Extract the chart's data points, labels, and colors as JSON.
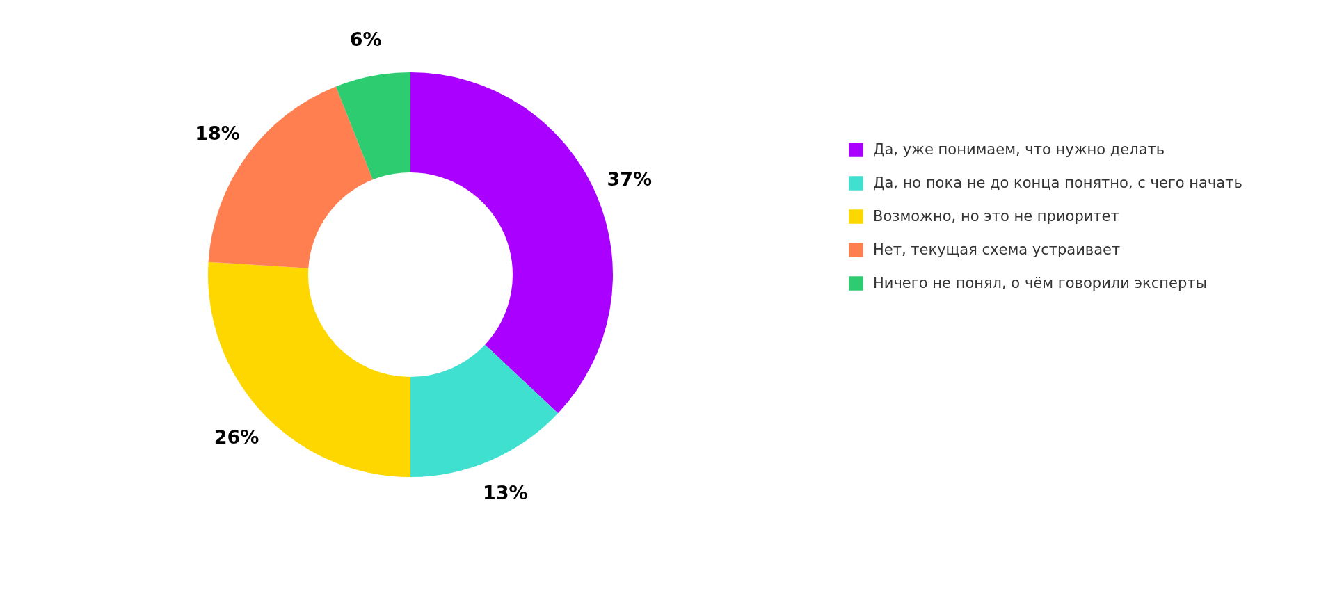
{
  "chart_data": {
    "type": "donut",
    "categories": [
      "Да, уже понимаем, что нужно делать",
      "Да, но пока не до конца понятно, с чего начать",
      "Возможно, но это не приоритет",
      "Нет, текущая схема устраивает",
      "Ничего не понял, о чём говорили эксперты"
    ],
    "values": [
      37,
      13,
      26,
      18,
      6
    ],
    "value_labels": [
      "37%",
      "13%",
      "26%",
      "18%",
      "6%"
    ],
    "colors": [
      "#aa00ff",
      "#40e0d0",
      "#ffd700",
      "#ff7f50",
      "#2ecc71"
    ],
    "legend": "right"
  }
}
